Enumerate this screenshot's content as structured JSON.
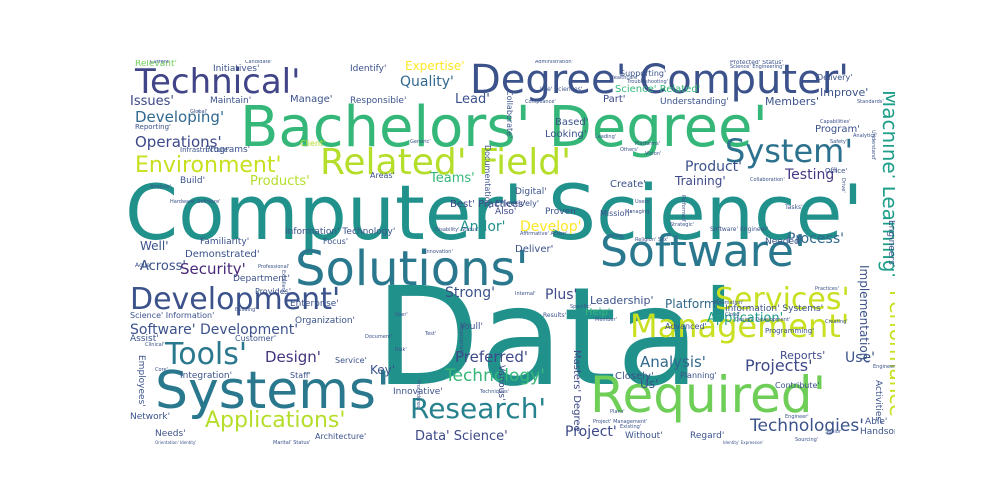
{
  "words": [
    {
      "text": "Data'",
      "color": "#21918c"
    },
    {
      "text": "Computer' Science'",
      "color": "#21918c"
    },
    {
      "text": "Bachelors' Degree'",
      "color": "#35b779"
    },
    {
      "text": "Systems'",
      "color": "#2a788e"
    },
    {
      "text": "Solutions'",
      "color": "#2a788e"
    },
    {
      "text": "Software'",
      "color": "#2a788e"
    },
    {
      "text": "Required'",
      "color": "#6ece58"
    },
    {
      "text": "Degree' Computer'",
      "color": "#3b528b"
    },
    {
      "text": "Technical'",
      "color": "#414487"
    },
    {
      "text": "Related' Field'",
      "color": "#b5de2b"
    },
    {
      "text": "System'",
      "color": "#2c728e"
    },
    {
      "text": "Management'",
      "color": "#c8e020"
    },
    {
      "text": "Development'",
      "color": "#3b528b"
    },
    {
      "text": "Services'",
      "color": "#c8e020"
    },
    {
      "text": "Research'",
      "color": "#26828e"
    },
    {
      "text": "Tools'",
      "color": "#2a788e"
    },
    {
      "text": "Applications'",
      "color": "#b5de2b"
    },
    {
      "text": "Environment'",
      "color": "#c8e020"
    },
    {
      "text": "Performance'",
      "color": "#c8e020"
    },
    {
      "text": "Machine' Learning'",
      "color": "#1f9e89"
    },
    {
      "text": "Technology'",
      "color": "#35b779"
    },
    {
      "text": "Projects'",
      "color": "#3e4989"
    },
    {
      "text": "Analysis'",
      "color": "#31688e"
    },
    {
      "text": "Technologies'",
      "color": "#3b528b"
    },
    {
      "text": "Quality'",
      "color": "#31688e"
    },
    {
      "text": "Expertise'",
      "color": "#fde725"
    },
    {
      "text": "Developing'",
      "color": "#31688e"
    },
    {
      "text": "Operations'",
      "color": "#3e4989"
    },
    {
      "text": "Security'",
      "color": "#482878"
    },
    {
      "text": "Design'",
      "color": "#46337e"
    },
    {
      "text": "Process'",
      "color": "#31688e"
    },
    {
      "text": "Preferred'",
      "color": "#3e4989"
    },
    {
      "text": "Testing'",
      "color": "#443983"
    },
    {
      "text": "Product'",
      "color": "#3b528b"
    },
    {
      "text": "Application'",
      "color": "#1f9e89"
    },
    {
      "text": "Software' Development'",
      "color": "#3b528b"
    },
    {
      "text": "Teams'",
      "color": "#35b779"
    },
    {
      "text": "Products'",
      "color": "#b5de2b"
    },
    {
      "text": "Lead'",
      "color": "#3b528b"
    },
    {
      "text": "Strong'",
      "color": "#3b528b"
    },
    {
      "text": "Plus'",
      "color": "#3e4989"
    },
    {
      "text": "Develop'",
      "color": "#fde725"
    },
    {
      "text": "Andor'",
      "color": "#21918c"
    },
    {
      "text": "Across'",
      "color": "#3b528b"
    },
    {
      "text": "Implementation'",
      "color": "#3b528b"
    },
    {
      "text": "Project'",
      "color": "#3e4989"
    },
    {
      "text": "Data' Science'",
      "color": "#3e4989"
    },
    {
      "text": "Leadership'",
      "color": "#3b528b"
    },
    {
      "text": "Platform'",
      "color": "#31688e"
    },
    {
      "text": "Key'",
      "color": "#3b528b"
    },
    {
      "text": "Use'",
      "color": "#3b528b"
    },
    {
      "text": "Reports'",
      "color": "#3e4989"
    },
    {
      "text": "Help'",
      "color": "#35b779"
    },
    {
      "text": "Training'",
      "color": "#3e4989"
    },
    {
      "text": "Issues'",
      "color": "#3e4989"
    },
    {
      "text": "Members'",
      "color": "#3b528b"
    },
    {
      "text": "Improve'",
      "color": "#3b528b"
    },
    {
      "text": "Manage'",
      "color": "#3b528b"
    },
    {
      "text": "Identify'",
      "color": "#3b528b"
    },
    {
      "text": "Relevant'",
      "color": "#6ece58"
    },
    {
      "text": "Initiatives'",
      "color": "#3b528b"
    },
    {
      "text": "Maintain'",
      "color": "#3b528b"
    },
    {
      "text": "Responsible'",
      "color": "#3b528b"
    },
    {
      "text": "Part'",
      "color": "#3e4989"
    },
    {
      "text": "Science' Related'",
      "color": "#35b779"
    },
    {
      "text": "Understanding'",
      "color": "#3b528b"
    },
    {
      "text": "Program'",
      "color": "#3b528b"
    },
    {
      "text": "Programs'",
      "color": "#3b528b"
    },
    {
      "text": "Based'",
      "color": "#3b528b"
    },
    {
      "text": "Looking'",
      "color": "#3b528b"
    },
    {
      "text": "Client'",
      "color": "#b5de2b"
    },
    {
      "text": "Build'",
      "color": "#3b528b"
    },
    {
      "text": "Areas'",
      "color": "#3b528b"
    },
    {
      "text": "Digital'",
      "color": "#3b528b"
    },
    {
      "text": "Effectively'",
      "color": "#3b528b"
    },
    {
      "text": "Create'",
      "color": "#3b528b"
    },
    {
      "text": "Best' Practices'",
      "color": "#3e4989"
    },
    {
      "text": "Also'",
      "color": "#3e4989"
    },
    {
      "text": "Proven'",
      "color": "#3b528b"
    },
    {
      "text": "Mission'",
      "color": "#3b528b"
    },
    {
      "text": "Familiarity'",
      "color": "#3b528b"
    },
    {
      "text": "Information' Technology'",
      "color": "#3b528b"
    },
    {
      "text": "Focus'",
      "color": "#3b528b"
    },
    {
      "text": "Deliver'",
      "color": "#3b528b"
    },
    {
      "text": "Needed'",
      "color": "#3b528b"
    },
    {
      "text": "Demonstrated'",
      "color": "#3b528b"
    },
    {
      "text": "Department'",
      "color": "#3b528b"
    },
    {
      "text": "Provides'",
      "color": "#3b528b"
    },
    {
      "text": "Enterprise'",
      "color": "#3b528b"
    },
    {
      "text": "Organization'",
      "color": "#3b528b"
    },
    {
      "text": "Customer'",
      "color": "#3b528b"
    },
    {
      "text": "Staff'",
      "color": "#3b528b"
    },
    {
      "text": "Integration'",
      "color": "#3b528b"
    },
    {
      "text": "Innovative'",
      "color": "#3b528b"
    },
    {
      "text": "Various'",
      "color": "#3e4989"
    },
    {
      "text": "Masters' Degree'",
      "color": "#3e4989"
    },
    {
      "text": "Youll'",
      "color": "#3b528b"
    },
    {
      "text": "Closely'",
      "color": "#3b528b"
    },
    {
      "text": "Planning'",
      "color": "#3b528b"
    },
    {
      "text": "Contribute'",
      "color": "#3b528b"
    },
    {
      "text": "Us'",
      "color": "#3b528b"
    },
    {
      "text": "Without'",
      "color": "#3b528b"
    },
    {
      "text": "Regard'",
      "color": "#3b528b"
    },
    {
      "text": "Able'",
      "color": "#3b528b"
    },
    {
      "text": "Handson'",
      "color": "#3b528b"
    },
    {
      "text": "Activities'",
      "color": "#3b528b"
    },
    {
      "text": "Engineers'",
      "color": "#3b528b"
    },
    {
      "text": "Employees'",
      "color": "#3b528b"
    },
    {
      "text": "Network'",
      "color": "#3b528b"
    },
    {
      "text": "Needs'",
      "color": "#3b528b"
    },
    {
      "text": "Architecture'",
      "color": "#3b528b"
    },
    {
      "text": "Assist'",
      "color": "#3b528b"
    },
    {
      "text": "Well'",
      "color": "#3b528b"
    },
    {
      "text": "Collaborate'",
      "color": "#3b528b"
    },
    {
      "text": "Documentation'",
      "color": "#3b528b"
    },
    {
      "text": "Information' Systems'",
      "color": "#3b528b"
    },
    {
      "text": "Advanced'",
      "color": "#3b528b"
    },
    {
      "text": "Science' Information'",
      "color": "#3b528b"
    },
    {
      "text": "Service'",
      "color": "#3b528b"
    },
    {
      "text": "Reporting'",
      "color": "#3b528b"
    },
    {
      "text": "Infrastructure'",
      "color": "#3b528b"
    },
    {
      "text": "Software' Engineer'",
      "color": "#3b528b"
    },
    {
      "text": "Agile'",
      "color": "#3b528b"
    },
    {
      "text": "Current'",
      "color": "#3b528b"
    },
    {
      "text": "Candidate'",
      "color": "#3b528b"
    },
    {
      "text": "Administration'",
      "color": "#3b528b"
    },
    {
      "text": "Supporting'",
      "color": "#3b528b"
    },
    {
      "text": "Protected' Status'",
      "color": "#3b528b"
    },
    {
      "text": "Delivery'",
      "color": "#3b528b"
    },
    {
      "text": "Life' Sciences'",
      "color": "#3b528b"
    },
    {
      "text": "Compliance'",
      "color": "#3b528b"
    },
    {
      "text": "Platforms'",
      "color": "#3b528b"
    },
    {
      "text": "Analytics'",
      "color": "#3b528b"
    },
    {
      "text": "Capabilities'",
      "color": "#3b528b"
    },
    {
      "text": "Standards'",
      "color": "#3b528b"
    },
    {
      "text": "Collaboration'",
      "color": "#3b528b"
    },
    {
      "text": "Tasks'",
      "color": "#3b528b"
    },
    {
      "text": "Practices'",
      "color": "#3b528b"
    },
    {
      "text": "Hardware' Software'",
      "color": "#3b528b"
    },
    {
      "text": "Professional'",
      "color": "#3b528b"
    },
    {
      "text": "Clinical'",
      "color": "#3b528b"
    },
    {
      "text": "Disability' Status'",
      "color": "#3b528b"
    },
    {
      "text": "Orientation' Identity'",
      "color": "#3b528b"
    },
    {
      "text": "Religion' Sex'",
      "color": "#3b528b"
    },
    {
      "text": "Identity' Expression'",
      "color": "#3b528b"
    },
    {
      "text": "Sourcing'",
      "color": "#3b528b"
    },
    {
      "text": "Design' Development'",
      "color": "#3b528b"
    },
    {
      "text": "Existing'",
      "color": "#3b528b"
    },
    {
      "text": "Automation'",
      "color": "#3b528b"
    },
    {
      "text": "Cloud'",
      "color": "#3b528b"
    },
    {
      "text": "Office'",
      "color": "#3b528b"
    },
    {
      "text": "Drive'",
      "color": "#3b528b"
    },
    {
      "text": "Results'",
      "color": "#3b528b"
    },
    {
      "text": "User'",
      "color": "#3b528b"
    },
    {
      "text": "Users'",
      "color": "#3b528b"
    },
    {
      "text": "Risk'",
      "color": "#3b528b"
    },
    {
      "text": "Core'",
      "color": "#3b528b"
    },
    {
      "text": "Internal'",
      "color": "#3b528b"
    },
    {
      "text": "Analyze'",
      "color": "#3b528b"
    },
    {
      "text": "Generic'",
      "color": "#3b528b"
    },
    {
      "text": "Global'",
      "color": "#3b528b"
    },
    {
      "text": "Excellent'",
      "color": "#3b528b"
    },
    {
      "text": "Building'",
      "color": "#3b528b"
    },
    {
      "text": "Managing'",
      "color": "#3b528b"
    },
    {
      "text": "Troubleshooting'",
      "color": "#3b528b"
    },
    {
      "text": "Healthcare'",
      "color": "#3b528b"
    },
    {
      "text": "Safety'",
      "color": "#3b528b"
    },
    {
      "text": "Leading'",
      "color": "#3b528b"
    },
    {
      "text": "Vision'",
      "color": "#3b528b"
    },
    {
      "text": "Marital' Status'",
      "color": "#3b528b"
    },
    {
      "text": "Science' Engineering'",
      "color": "#3b528b"
    },
    {
      "text": "Test'",
      "color": "#3b528b"
    },
    {
      "text": "Specific'",
      "color": "#3b528b"
    },
    {
      "text": "Document'",
      "color": "#3b528b"
    },
    {
      "text": "Appropriate'",
      "color": "#3b528b"
    },
    {
      "text": "Procedures'",
      "color": "#3b528b"
    },
    {
      "text": "Techniques'",
      "color": "#3b528b"
    },
    {
      "text": "Performed'",
      "color": "#3b528b"
    },
    {
      "text": "Innovation'",
      "color": "#3b528b"
    },
    {
      "text": "Others'",
      "color": "#3b528b"
    },
    {
      "text": "Creating'",
      "color": "#3b528b"
    },
    {
      "text": "Understand'",
      "color": "#3b528b"
    },
    {
      "text": "Engineer'",
      "color": "#3b528b"
    },
    {
      "text": "Project' Management'",
      "color": "#3b528b"
    },
    {
      "text": "Plans'",
      "color": "#3b528b"
    },
    {
      "text": "Member'",
      "color": "#3b528b"
    },
    {
      "text": "Programming'",
      "color": "#3b528b"
    },
    {
      "text": "Senior'",
      "color": "#3b528b"
    },
    {
      "text": "Affirmative' Action'",
      "color": "#3b528b"
    },
    {
      "text": "Strategic'",
      "color": "#3b528b"
    },
    {
      "text": "Engineering'",
      "color": "#3b528b"
    }
  ]
}
